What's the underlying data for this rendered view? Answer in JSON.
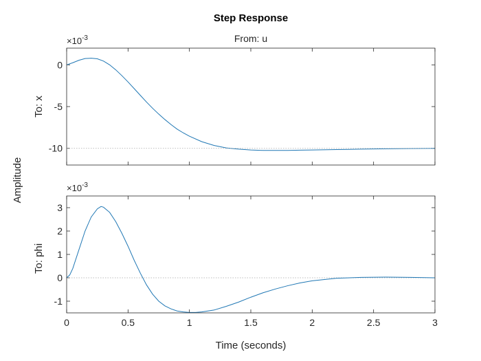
{
  "chart_data": [
    {
      "type": "line",
      "title": "Step Response",
      "subtitle": "From: u",
      "ylabel": "To: x",
      "xlabel": "Time (seconds)",
      "figure_ylabel": "Amplitude",
      "exponent_label": {
        "base": "×10",
        "power": "-3"
      },
      "xlim": [
        0,
        3
      ],
      "ylim": [
        -12,
        2
      ],
      "x_ticks": [
        "0",
        "0.5",
        "1",
        "1.5",
        "2",
        "2.5",
        "3"
      ],
      "y_ticks": [
        0,
        -5,
        -10
      ],
      "y_tick_labels": [
        "0",
        "-5",
        "-10"
      ],
      "steady_state": -10,
      "series": [
        {
          "color": "#1f77b4",
          "x": [
            0,
            0.05,
            0.1,
            0.15,
            0.2,
            0.25,
            0.3,
            0.35,
            0.4,
            0.45,
            0.5,
            0.55,
            0.6,
            0.65,
            0.7,
            0.75,
            0.8,
            0.85,
            0.9,
            0.95,
            1.0,
            1.1,
            1.2,
            1.3,
            1.4,
            1.5,
            1.6,
            1.7,
            1.8,
            1.9,
            2.0,
            2.2,
            2.4,
            2.6,
            2.8,
            3.0
          ],
          "y": [
            0,
            0.25,
            0.55,
            0.75,
            0.8,
            0.72,
            0.45,
            0.0,
            -0.6,
            -1.3,
            -2.05,
            -2.85,
            -3.65,
            -4.45,
            -5.2,
            -5.9,
            -6.55,
            -7.15,
            -7.7,
            -8.15,
            -8.55,
            -9.2,
            -9.65,
            -9.95,
            -10.1,
            -10.2,
            -10.25,
            -10.25,
            -10.25,
            -10.22,
            -10.2,
            -10.15,
            -10.1,
            -10.05,
            -10.02,
            -10.0
          ]
        }
      ]
    },
    {
      "type": "line",
      "subtitle": "",
      "ylabel": "To: phi",
      "xlabel": "Time (seconds)",
      "exponent_label": {
        "base": "×10",
        "power": "-3"
      },
      "xlim": [
        0,
        3
      ],
      "ylim": [
        -1.5,
        3.5
      ],
      "x_ticks": [
        "0",
        "0.5",
        "1",
        "1.5",
        "2",
        "2.5",
        "3"
      ],
      "y_ticks": [
        3,
        2,
        1,
        0,
        -1
      ],
      "y_tick_labels": [
        "3",
        "2",
        "1",
        "0",
        "-1"
      ],
      "steady_state": 0,
      "series": [
        {
          "color": "#1f77b4",
          "x": [
            0,
            0.025,
            0.05,
            0.1,
            0.15,
            0.2,
            0.25,
            0.28,
            0.3,
            0.35,
            0.4,
            0.45,
            0.5,
            0.55,
            0.6,
            0.65,
            0.7,
            0.75,
            0.8,
            0.85,
            0.9,
            0.95,
            1.0,
            1.05,
            1.1,
            1.2,
            1.3,
            1.4,
            1.5,
            1.6,
            1.7,
            1.8,
            1.9,
            2.0,
            2.2,
            2.4,
            2.6,
            2.8,
            3.0
          ],
          "y": [
            0,
            0.12,
            0.4,
            1.2,
            2.0,
            2.6,
            2.95,
            3.05,
            3.02,
            2.8,
            2.4,
            1.9,
            1.35,
            0.75,
            0.2,
            -0.3,
            -0.7,
            -1.0,
            -1.2,
            -1.33,
            -1.42,
            -1.46,
            -1.48,
            -1.48,
            -1.46,
            -1.38,
            -1.22,
            -1.04,
            -0.83,
            -0.64,
            -0.48,
            -0.34,
            -0.22,
            -0.13,
            -0.02,
            0.02,
            0.03,
            0.02,
            0.0
          ]
        }
      ]
    }
  ]
}
